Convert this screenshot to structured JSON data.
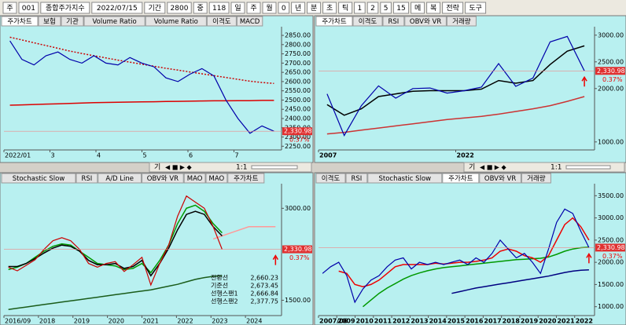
{
  "toolbar": {
    "items": [
      "주",
      "001",
      "종합주가지수",
      "2022/07/15",
      "기간",
      "2800",
      "중",
      "118",
      "일",
      "주",
      "월",
      "0",
      "년",
      "분",
      "초",
      "틱",
      "1",
      "2",
      "5",
      "15",
      "메",
      "복",
      "전략",
      "도구"
    ]
  },
  "panels": [
    {
      "tabs": [
        "주가차트",
        "보험",
        "기관",
        "Volume Ratio",
        "Volume Ratio",
        "이격도",
        "MACD"
      ],
      "ylim": [
        2230,
        2880
      ],
      "yticks": [
        {
          "value": 2850,
          "label": "2850.00"
        },
        {
          "value": 2800,
          "label": "2800.00"
        },
        {
          "value": 2750,
          "label": "2750.00"
        },
        {
          "value": 2700,
          "label": "2700.00"
        },
        {
          "value": 2650,
          "label": "2650.00"
        },
        {
          "value": 2600,
          "label": "2600.00"
        },
        {
          "value": 2550,
          "label": "2550.00"
        },
        {
          "value": 2500,
          "label": "2500.00"
        },
        {
          "value": 2450,
          "label": "2450.00"
        },
        {
          "value": 2400,
          "label": "2400.00"
        },
        {
          "value": 2350,
          "label": "2350.00"
        },
        {
          "value": 2300,
          "label": "2300.00"
        },
        {
          "value": 2250,
          "label": "2250.00"
        }
      ],
      "xlabels": [
        "2022/01",
        "3",
        "4",
        "5",
        "6",
        "7"
      ],
      "price_label": {
        "value": 2330.98,
        "label": "2,330.98"
      },
      "change_label": "0.37%",
      "nav": [
        "기",
        "1:1"
      ],
      "series": [
        {
          "color": "#cc0000",
          "dash": true,
          "values": [
            2840,
            2825,
            2810,
            2795,
            2780,
            2765,
            2752,
            2740,
            2728,
            2716,
            2705,
            2694,
            2683,
            2672,
            2662,
            2652,
            2642,
            2632,
            2622,
            2612,
            2602,
            2595,
            2590
          ]
        },
        {
          "color": "#dd0000",
          "values": [
            2472,
            2474,
            2476,
            2478,
            2480,
            2482,
            2484,
            2486,
            2487,
            2488,
            2489,
            2490,
            2491,
            2492,
            2493,
            2494,
            2495,
            2496,
            2496,
            2497,
            2497,
            2498,
            2498
          ]
        },
        {
          "color": "#0000aa",
          "values": [
            2820,
            2720,
            2690,
            2740,
            2760,
            2720,
            2700,
            2740,
            2700,
            2690,
            2730,
            2700,
            2680,
            2620,
            2600,
            2640,
            2670,
            2630,
            2500,
            2400,
            2320,
            2360,
            2330.98
          ]
        }
      ]
    },
    {
      "tabs": [
        "주가차트",
        "이격도",
        "RSI",
        "OBV와 VR",
        "거래량"
      ],
      "ylim": [
        850,
        3100
      ],
      "yticks": [
        {
          "value": 3000,
          "label": "3000.00"
        },
        {
          "value": 2500,
          "label": "2500.00"
        },
        {
          "value": 2000,
          "label": "2000.00"
        },
        {
          "value": 1000,
          "label": "1000.00"
        }
      ],
      "xlabels": [
        "2007",
        "2022"
      ],
      "price_label": {
        "value": 2330.98,
        "label": "2,330.98"
      },
      "change_label": "0.37%",
      "nav": [
        "기",
        "1:1"
      ],
      "series": [
        {
          "color": "#cc3333",
          "values": [
            1150,
            1180,
            1220,
            1260,
            1300,
            1340,
            1380,
            1420,
            1450,
            1480,
            1520,
            1570,
            1620,
            1680,
            1760,
            1850
          ]
        },
        {
          "color": "#000000",
          "values": [
            1700,
            1500,
            1620,
            1850,
            1900,
            1950,
            1960,
            1960,
            1960,
            1990,
            2150,
            2100,
            2150,
            2450,
            2700,
            2800
          ]
        },
        {
          "color": "#0000aa",
          "values": [
            1900,
            1120,
            1680,
            2050,
            1820,
            2000,
            2010,
            1915,
            1960,
            2026,
            2467,
            2041,
            2197,
            2873,
            2977,
            2330.98
          ]
        }
      ]
    },
    {
      "tabs": [
        "Stochastic Slow",
        "RSI",
        "A/D Line",
        "OBV와 VR",
        "MAO",
        "MAO",
        "주가차트"
      ],
      "ylim": [
        1250,
        3350
      ],
      "yticks": [
        {
          "value": 3000,
          "label": "3000.00"
        },
        {
          "value": 1500,
          "label": "1500.00"
        }
      ],
      "xlabels": [
        "2016/09",
        "2018",
        "2019",
        "2020",
        "2021",
        "2022",
        "2023",
        "2024"
      ],
      "price_label": {
        "value": 2330.98,
        "label": "2,330.98"
      },
      "change_label": "0.37%",
      "info": [
        {
          "label": "전환선",
          "value": "2,660.23"
        },
        {
          "label": "기준선",
          "value": "2,673.45"
        },
        {
          "label": "선행스팬1",
          "value": "2,666.84"
        },
        {
          "label": "선행스팬2",
          "value": "2,377.75"
        }
      ],
      "series": [
        {
          "color": "#1a5c1a",
          "values": [
            1350,
            1370,
            1390,
            1410,
            1430,
            1450,
            1470,
            1490,
            1510,
            1530,
            1550,
            1570,
            1590,
            1610,
            1630,
            1650,
            1670,
            1700,
            1730,
            1760,
            1800,
            1840,
            1870,
            1890,
            1900,
            null,
            null,
            null,
            null,
            null,
            null
          ]
        },
        {
          "color": "#ff9999",
          "values": [
            null,
            null,
            null,
            null,
            null,
            null,
            null,
            null,
            null,
            null,
            null,
            null,
            null,
            null,
            null,
            null,
            null,
            null,
            null,
            null,
            null,
            null,
            null,
            2500,
            2550,
            2600,
            2650,
            2700,
            2700,
            2700,
            2700
          ]
        },
        {
          "color": "#009900",
          "values": [
            2000,
            2040,
            2100,
            2200,
            2300,
            2380,
            2420,
            2400,
            2300,
            2200,
            2100,
            2080,
            2060,
            2000,
            2020,
            2100,
            1950,
            2150,
            2400,
            2750,
            3000,
            3050,
            2950,
            2750,
            2600,
            null,
            null,
            null,
            null,
            null,
            null
          ]
        },
        {
          "color": "#000000",
          "values": [
            2050,
            2050,
            2100,
            2180,
            2270,
            2350,
            2400,
            2380,
            2300,
            2150,
            2080,
            2080,
            2100,
            2020,
            2050,
            2150,
            1900,
            2100,
            2350,
            2650,
            2900,
            2950,
            2900,
            2700,
            2550,
            null,
            null,
            null,
            null,
            null,
            null
          ]
        },
        {
          "color": "#cc0000",
          "values": [
            2040,
            1980,
            2070,
            2160,
            2330,
            2470,
            2520,
            2470,
            2330,
            2100,
            2040,
            2100,
            2130,
            1970,
            2080,
            2200,
            1750,
            2100,
            2400,
            2870,
            3200,
            3100,
            3000,
            2700,
            2330.98,
            null,
            null,
            null,
            null,
            null,
            null
          ]
        }
      ]
    },
    {
      "tabs": [
        "이격도",
        "RSI",
        "Stochastic Slow",
        "주가차트",
        "OBV와 VR",
        "거래량"
      ],
      "ylim": [
        800,
        3700
      ],
      "yticks": [
        {
          "value": 3500,
          "label": "3500.00"
        },
        {
          "value": 3000,
          "label": "3000.00"
        },
        {
          "value": 2500,
          "label": "2500.00"
        },
        {
          "value": 2000,
          "label": "2000.00"
        },
        {
          "value": 1500,
          "label": "1500.00"
        },
        {
          "value": 1000,
          "label": "1000.00"
        }
      ],
      "xlabels": [
        "2007/06",
        "2009",
        "2010",
        "2011",
        "2012",
        "2013",
        "2014",
        "2015",
        "2016",
        "2017",
        "2018",
        "2019",
        "2020",
        "2021",
        "2022"
      ],
      "price_label": {
        "value": 2330.98,
        "label": "2,330.98"
      },
      "change_label": "0.37%",
      "series": [
        {
          "color": "#000080",
          "values": [
            null,
            null,
            null,
            null,
            null,
            null,
            null,
            null,
            null,
            null,
            null,
            null,
            null,
            null,
            null,
            null,
            1300,
            1340,
            1380,
            1420,
            1450,
            1480,
            1510,
            1540,
            1570,
            1600,
            1630,
            1660,
            1690,
            1730,
            1770,
            1800,
            1820,
            1830
          ]
        },
        {
          "color": "#009900",
          "values": [
            null,
            null,
            null,
            null,
            null,
            1000,
            1150,
            1300,
            1420,
            1520,
            1620,
            1700,
            1760,
            1810,
            1850,
            1880,
            1900,
            1920,
            1940,
            1960,
            1980,
            2000,
            2020,
            2040,
            2060,
            2070,
            2080,
            2090,
            2120,
            2180,
            2250,
            2300,
            2330,
            2340
          ]
        },
        {
          "color": "#ee0000",
          "values": [
            null,
            null,
            1800,
            1750,
            1500,
            1450,
            1500,
            1600,
            1750,
            1900,
            1950,
            1950,
            1950,
            1950,
            1980,
            1960,
            1980,
            2000,
            2000,
            2020,
            2050,
            2100,
            2250,
            2300,
            2250,
            2150,
            2100,
            2000,
            2150,
            2500,
            2850,
            3000,
            2800,
            2500
          ]
        },
        {
          "color": "#0000aa",
          "values": [
            1750,
            1900,
            2000,
            1700,
            1100,
            1400,
            1600,
            1700,
            1900,
            2050,
            2100,
            1850,
            2000,
            1950,
            2000,
            1950,
            2000,
            2050,
            1950,
            2100,
            2000,
            2200,
            2500,
            2300,
            2100,
            2200,
            2000,
            1750,
            2300,
            2900,
            3200,
            3100,
            2700,
            2330.98
          ]
        }
      ]
    }
  ]
}
